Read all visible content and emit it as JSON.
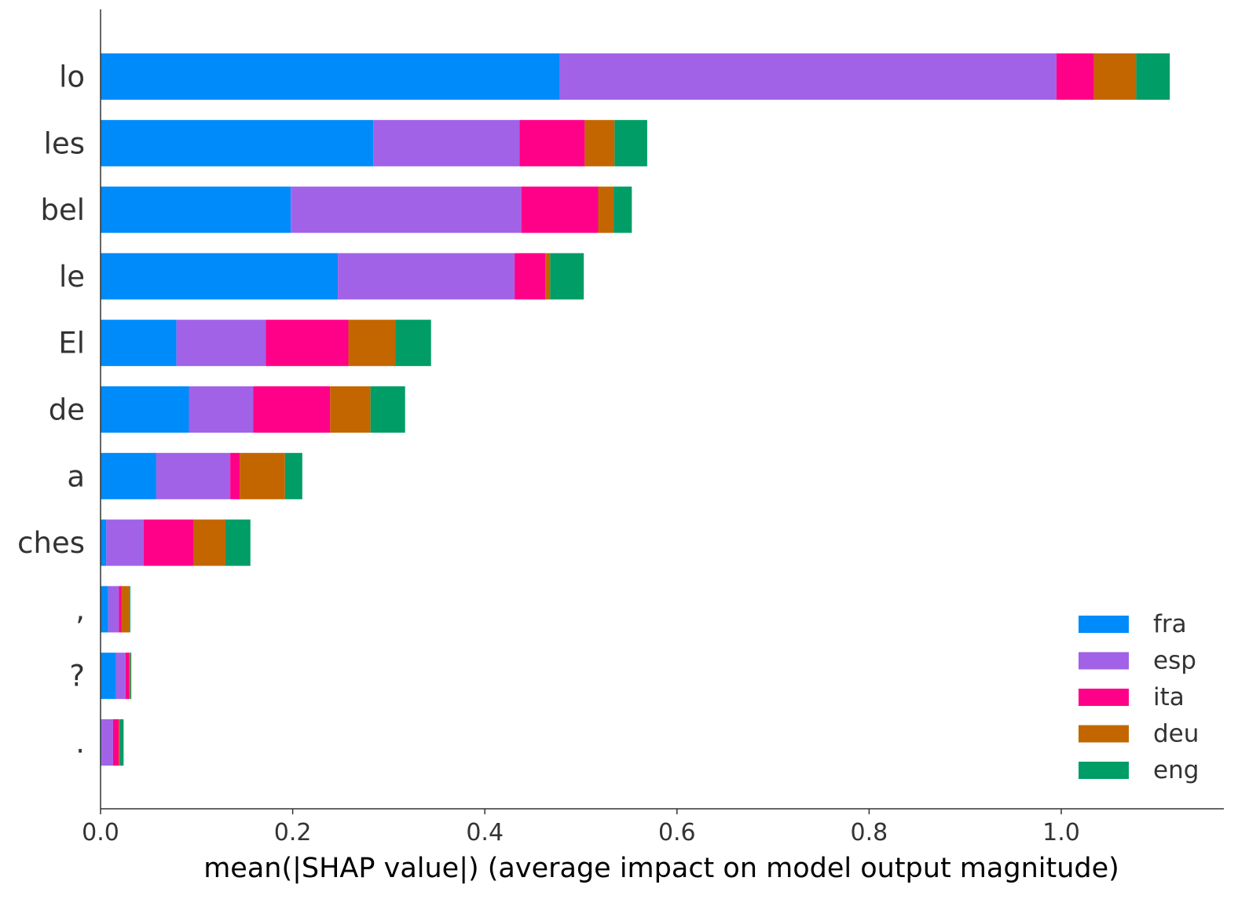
{
  "chart_data": {
    "type": "bar",
    "orientation": "horizontal",
    "stacked": true,
    "title": "",
    "xlabel": "mean(|SHAP value|) (average impact on model output magnitude)",
    "ylabel": "",
    "xlim": [
      0,
      1.17
    ],
    "xticks": [
      0.0,
      0.2,
      0.4,
      0.6,
      0.8,
      1.0
    ],
    "xtick_labels": [
      "0.0",
      "0.2",
      "0.4",
      "0.6",
      "0.8",
      "1.0"
    ],
    "grid": false,
    "legend_position": "lower-right",
    "categories": [
      "lo",
      "les",
      "bel",
      "le",
      "El",
      "de",
      "a",
      "ches",
      ",",
      "?",
      "."
    ],
    "series": [
      {
        "name": "fra",
        "color": "#008bfb",
        "values": [
          0.478,
          0.284,
          0.198,
          0.247,
          0.079,
          0.092,
          0.058,
          0.006,
          0.008,
          0.016,
          0.001
        ]
      },
      {
        "name": "esp",
        "color": "#a162e8",
        "values": [
          0.517,
          0.152,
          0.24,
          0.184,
          0.093,
          0.067,
          0.077,
          0.039,
          0.011,
          0.01,
          0.012
        ]
      },
      {
        "name": "ita",
        "color": "#ff0088",
        "values": [
          0.039,
          0.068,
          0.08,
          0.032,
          0.086,
          0.08,
          0.01,
          0.052,
          0.003,
          0.004,
          0.006
        ]
      },
      {
        "name": "deu",
        "color": "#c36600",
        "values": [
          0.044,
          0.031,
          0.016,
          0.005,
          0.049,
          0.042,
          0.047,
          0.033,
          0.008,
          0.001,
          0.001
        ]
      },
      {
        "name": "eng",
        "color": "#009d66",
        "values": [
          0.035,
          0.034,
          0.019,
          0.035,
          0.037,
          0.036,
          0.018,
          0.026,
          0.001,
          0.001,
          0.004
        ]
      }
    ]
  }
}
